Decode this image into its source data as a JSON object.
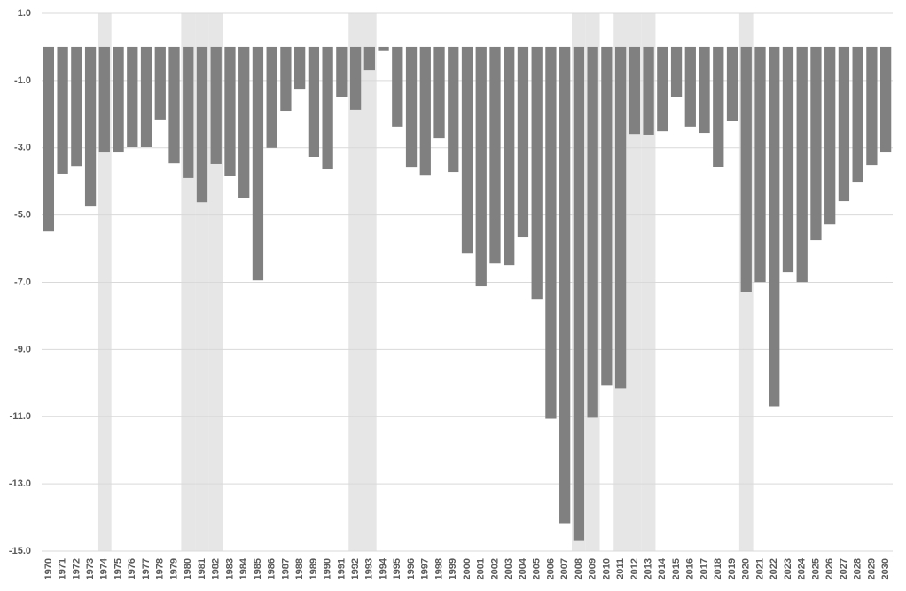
{
  "chart_data": {
    "type": "bar",
    "categories": [
      "1970",
      "1971",
      "1972",
      "1973",
      "1974",
      "1975",
      "1976",
      "1977",
      "1978",
      "1979",
      "1980",
      "1981",
      "1982",
      "1983",
      "1984",
      "1985",
      "1986",
      "1987",
      "1988",
      "1989",
      "1990",
      "1991",
      "1992",
      "1993",
      "1994",
      "1995",
      "1996",
      "1997",
      "1998",
      "1999",
      "2000",
      "2001",
      "2002",
      "2003",
      "2004",
      "2005",
      "2006",
      "2007",
      "2008",
      "2009",
      "2010",
      "2011",
      "2012",
      "2013",
      "2014",
      "2015",
      "2016",
      "2017",
      "2018",
      "2019",
      "2020",
      "2021",
      "2022",
      "2023",
      "2024",
      "2025",
      "2026",
      "2027",
      "2028",
      "2029",
      "2030"
    ],
    "values": [
      -5.49,
      -3.77,
      -3.54,
      -4.75,
      -3.14,
      -3.14,
      -2.98,
      -2.98,
      -2.16,
      -3.46,
      -3.9,
      -4.62,
      -3.48,
      -3.85,
      -4.49,
      -6.94,
      -3.0,
      -1.9,
      -1.27,
      -3.27,
      -3.64,
      -1.5,
      -1.87,
      -0.69,
      -0.1,
      -2.37,
      -3.59,
      -3.83,
      -2.72,
      -3.72,
      -6.15,
      -7.12,
      -6.44,
      -6.49,
      -5.67,
      -7.52,
      -11.06,
      -14.17,
      -14.7,
      -11.03,
      -10.08,
      -10.16,
      -2.59,
      -2.61,
      -2.51,
      -1.48,
      -2.37,
      -2.56,
      -3.56,
      -2.19,
      -7.28,
      -6.99,
      -10.69,
      -6.7,
      -6.99,
      -5.75,
      -5.28,
      -4.59,
      -4.01,
      -3.51,
      -3.14
    ],
    "color": "#808080",
    "shaded_categories": [
      "1974",
      "1980",
      "1981",
      "1982",
      "1992",
      "1993",
      "2008",
      "2009",
      "2011",
      "2012",
      "2013",
      "2020"
    ],
    "shade_color": "#e6e6e6",
    "ylim": [
      -15,
      1
    ],
    "yticks": [
      {
        "value": 1,
        "label": "1.0"
      },
      {
        "value": -1,
        "label": "-1.0"
      },
      {
        "value": -3,
        "label": "-3.0"
      },
      {
        "value": -5,
        "label": "-5.0"
      },
      {
        "value": -7,
        "label": "-7.0"
      },
      {
        "value": -9,
        "label": "-9.0"
      },
      {
        "value": -11,
        "label": "-11.0"
      },
      {
        "value": -13,
        "label": "-13.0"
      },
      {
        "value": -15,
        "label": "-15.0"
      }
    ],
    "grid": true
  }
}
